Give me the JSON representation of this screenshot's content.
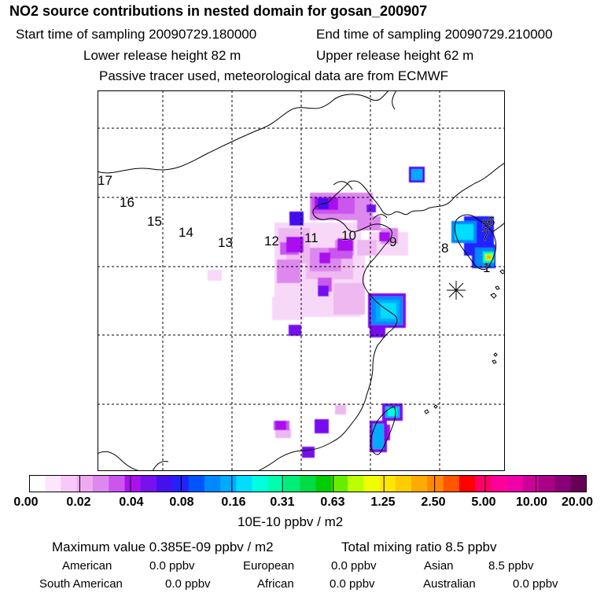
{
  "header": {
    "title": "NO2 source contributions in nested domain for gosan_200907",
    "start_label": "Start time of sampling 20090729.180000",
    "end_label": "End time of sampling 20090729.210000",
    "lower_release": "Lower release height   82 m",
    "upper_release": "Upper release height   62 m",
    "note": "Passive tracer used, meteorological data are from ECMWF"
  },
  "map": {
    "trajectory_labels": [
      "17",
      "16",
      "15",
      "14",
      "13",
      "12",
      "11",
      "10",
      "9",
      "8",
      "7",
      "6",
      "5",
      "1"
    ],
    "station_marker": "asterisk-icon"
  },
  "colorbar": {
    "colors": [
      "#ffffff",
      "#fde6fd",
      "#f8c8f8",
      "#eeaaf0",
      "#dd88ee",
      "#cc55ee",
      "#aa11ee",
      "#7711ee",
      "#4411ee",
      "#2222ff",
      "#0055ff",
      "#0088ff",
      "#00aaff",
      "#00ddff",
      "#00ffdd",
      "#00ffaa",
      "#00ee77",
      "#00dd44",
      "#00cc00",
      "#66ee00",
      "#bbff00",
      "#eeff00",
      "#ffe600",
      "#ffcc00",
      "#ffaa00",
      "#ff8800",
      "#ff5500",
      "#ff0000",
      "#ff0066",
      "#ff0099",
      "#ee00aa",
      "#cc0099",
      "#aa0088",
      "#880077",
      "#660055"
    ],
    "tick_labels": [
      "0.00",
      "0.02",
      "0.04",
      "0.08",
      "0.16",
      "0.31",
      "0.63",
      "1.25",
      "2.50",
      "5.00",
      "10.00",
      "20.00"
    ],
    "unit": "10E-10 ppbv / m2"
  },
  "stats": {
    "max_value": "Maximum value  0.385E-09 ppbv / m2",
    "total_mixing": "Total mixing ratio       8.5 ppbv",
    "american_label": "American",
    "american_value": "0.0 ppbv",
    "european_label": "European",
    "european_value": "0.0 ppbv",
    "asian_label": "Asian",
    "asian_value": "8.5 ppbv",
    "south_american_label": "South American",
    "south_american_value": "0.0 ppbv",
    "african_label": "African",
    "african_value": "0.0 ppbv",
    "australian_label": "Australian",
    "australian_value": "0.0 ppbv"
  }
}
